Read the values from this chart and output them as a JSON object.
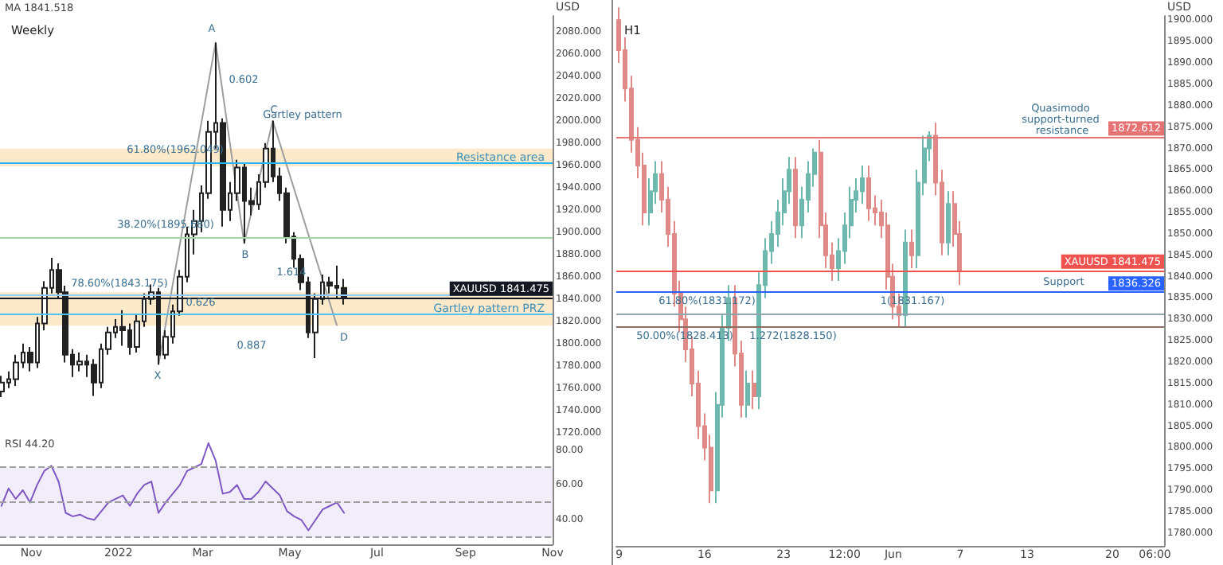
{
  "chart_data": [
    {
      "type": "candlestick",
      "title": "Weekly",
      "ylabel": "USD",
      "color": "#222222",
      "tick_labels": "y",
      "xlim": [
        "2021-10-10",
        "2022-11-01"
      ],
      "xticks": [
        {
          "value": "2021-11-01",
          "label": "Nov"
        },
        {
          "value": "2022-01-01",
          "label": "2022"
        },
        {
          "value": "2022-03-01",
          "label": "Mar"
        },
        {
          "value": "2022-05-01",
          "label": "May"
        },
        {
          "value": "2022-07-01",
          "label": "Jul"
        },
        {
          "value": "2022-09-01",
          "label": "Sep"
        },
        {
          "value": "2022-11-01",
          "label": "Nov"
        }
      ],
      "ylim": [
        1717,
        2094
      ],
      "yticks": [
        {
          "value": 1720,
          "label": "1720.000"
        },
        {
          "value": 1740,
          "label": "1740.000"
        },
        {
          "value": 1760,
          "label": "1760.000"
        },
        {
          "value": 1780,
          "label": "1780.000"
        },
        {
          "value": 1800,
          "label": "1800.000"
        },
        {
          "value": 1820,
          "label": "1820.000"
        },
        {
          "value": 1840,
          "label": "1840.000"
        },
        {
          "value": 1860,
          "label": "1860.000"
        },
        {
          "value": 1880,
          "label": "1880.000"
        },
        {
          "value": 1900,
          "label": "1900.000"
        },
        {
          "value": 1920,
          "label": "1920.000"
        },
        {
          "value": 1940,
          "label": "1940.000"
        },
        {
          "value": 1960,
          "label": "1960.000"
        },
        {
          "value": 1980,
          "label": "1980.000"
        },
        {
          "value": 2000,
          "label": "2000.000"
        },
        {
          "value": 2020,
          "label": "2020.000"
        },
        {
          "value": 2040,
          "label": "2040.000"
        },
        {
          "value": 2060,
          "label": "2060.000"
        },
        {
          "value": 2080,
          "label": "2080.000"
        }
      ],
      "x": [
        "2021-10-11",
        "2021-10-16",
        "2021-10-21",
        "2021-10-26",
        "2021-10-31",
        "2021-11-05",
        "2021-11-10",
        "2021-11-15",
        "2021-11-20",
        "2021-11-25",
        "2021-11-30",
        "2021-12-05",
        "2021-12-10",
        "2021-12-15",
        "2021-12-20",
        "2021-12-25",
        "2021-12-30",
        "2022-01-04",
        "2022-01-09",
        "2022-01-14",
        "2022-01-19",
        "2022-01-24",
        "2022-01-29",
        "2022-02-03",
        "2022-02-08",
        "2022-02-13",
        "2022-02-18",
        "2022-02-23",
        "2022-02-28",
        "2022-03-05",
        "2022-03-10",
        "2022-03-15",
        "2022-03-20",
        "2022-03-25",
        "2022-03-30",
        "2022-04-04",
        "2022-04-09",
        "2022-04-14",
        "2022-04-19",
        "2022-04-24",
        "2022-04-29",
        "2022-05-04",
        "2022-05-09",
        "2022-05-14",
        "2022-05-19",
        "2022-05-24",
        "2022-05-29",
        "2022-06-03",
        "2022-06-08"
      ],
      "ohlc": [
        [
          1757,
          1771,
          1752,
          1765
        ],
        [
          1765,
          1775,
          1760,
          1768
        ],
        [
          1768,
          1790,
          1762,
          1783
        ],
        [
          1783,
          1800,
          1778,
          1792
        ],
        [
          1792,
          1797,
          1775,
          1783
        ],
        [
          1783,
          1824,
          1778,
          1818
        ],
        [
          1818,
          1856,
          1812,
          1850
        ],
        [
          1850,
          1877,
          1845,
          1866
        ],
        [
          1866,
          1872,
          1840,
          1846
        ],
        [
          1846,
          1852,
          1783,
          1790
        ],
        [
          1790,
          1795,
          1770,
          1781
        ],
        [
          1781,
          1792,
          1775,
          1784
        ],
        [
          1784,
          1790,
          1770,
          1781
        ],
        [
          1781,
          1786,
          1753,
          1765
        ],
        [
          1765,
          1800,
          1760,
          1795
        ],
        [
          1795,
          1815,
          1790,
          1810
        ],
        [
          1810,
          1822,
          1805,
          1815
        ],
        [
          1815,
          1830,
          1798,
          1812
        ],
        [
          1812,
          1818,
          1790,
          1797
        ],
        [
          1797,
          1826,
          1792,
          1820
        ],
        [
          1820,
          1845,
          1815,
          1840
        ],
        [
          1840,
          1853,
          1835,
          1846
        ],
        [
          1846,
          1850,
          1781,
          1790
        ],
        [
          1790,
          1812,
          1786,
          1806
        ],
        [
          1806,
          1835,
          1800,
          1829
        ],
        [
          1829,
          1866,
          1825,
          1860
        ],
        [
          1860,
          1905,
          1855,
          1898
        ],
        [
          1898,
          1920,
          1880,
          1910
        ],
        [
          1910,
          1942,
          1900,
          1935
        ],
        [
          1935,
          2000,
          1930,
          1990
        ],
        [
          1990,
          2070,
          1975,
          1998
        ],
        [
          1998,
          2002,
          1905,
          1920
        ],
        [
          1920,
          1945,
          1910,
          1935
        ],
        [
          1935,
          1965,
          1928,
          1958
        ],
        [
          1958,
          1962,
          1890,
          1928
        ],
        [
          1928,
          1940,
          1915,
          1925
        ],
        [
          1925,
          1952,
          1920,
          1945
        ],
        [
          1945,
          1980,
          1940,
          1975
        ],
        [
          1975,
          2000,
          1945,
          1950
        ],
        [
          1950,
          1958,
          1928,
          1935
        ],
        [
          1935,
          1940,
          1890,
          1896
        ],
        [
          1896,
          1900,
          1868,
          1876
        ],
        [
          1876,
          1880,
          1848,
          1855
        ],
        [
          1855,
          1860,
          1805,
          1810
        ],
        [
          1810,
          1845,
          1787,
          1840
        ],
        [
          1840,
          1862,
          1835,
          1855
        ],
        [
          1855,
          1860,
          1845,
          1852
        ],
        [
          1852,
          1870,
          1840,
          1850
        ],
        [
          1850,
          1858,
          1835,
          1841.475
        ]
      ],
      "series": [
        {
          "type": "line",
          "color": "#9e9e9e",
          "x": [
            "2022-01-29",
            "2022-03-10",
            "2022-03-30",
            "2022-04-19",
            "2022-06-03"
          ],
          "values": [
            1781,
            2070,
            1890,
            2000,
            1816
          ]
        }
      ],
      "ref_lines": [
        {
          "axis": "y",
          "value": 1962.049,
          "color": "#29b6f6"
        },
        {
          "axis": "y",
          "value": 1895.68,
          "color": "#a5d6a7"
        },
        {
          "axis": "y",
          "value": 1843.175,
          "color": "#90caf9"
        },
        {
          "axis": "y",
          "value": 1827,
          "color": "#4fc3f7"
        },
        {
          "axis": "y",
          "value": 1841.475,
          "color": "#131722",
          "label": "XAUUSD 1841.475"
        }
      ],
      "bands": [
        {
          "axis": "y",
          "from": 1959,
          "to": 1975,
          "color": "#fbe3bd",
          "label": "Resistance area"
        },
        {
          "axis": "y",
          "from": 1816,
          "to": 1846,
          "color": "#fbe3bd",
          "label": "Gartley pattern PRZ"
        }
      ],
      "annotations": [
        "MA 1841.518",
        "X",
        "A",
        "B",
        "C",
        "D",
        "0.602",
        "0.626",
        "0.887",
        "1.614",
        "Gartley pattern",
        "61.80%(1962.049)",
        "38.20%(1895.680)",
        "78.60%(1843.175)"
      ]
    },
    {
      "type": "line",
      "color": "#7e57c2",
      "xlim": [
        "2021-10-10",
        "2022-11-01"
      ],
      "xticks": [
        {
          "value": "2021-11-01",
          "label": "Nov"
        },
        {
          "value": "2022-01-01",
          "label": "2022"
        },
        {
          "value": "2022-03-01",
          "label": "Mar"
        },
        {
          "value": "2022-05-01",
          "label": "May"
        },
        {
          "value": "2022-07-01",
          "label": "Jul"
        },
        {
          "value": "2022-09-01",
          "label": "Sep"
        },
        {
          "value": "2022-11-01",
          "label": "Nov"
        }
      ],
      "ylim": [
        26,
        88
      ],
      "yticks": [
        {
          "value": 40,
          "label": "40.00"
        },
        {
          "value": 60,
          "label": "60.00"
        },
        {
          "value": 80,
          "label": "80.00"
        }
      ],
      "x": [
        "2021-10-11",
        "2021-10-16",
        "2021-10-21",
        "2021-10-26",
        "2021-10-31",
        "2021-11-05",
        "2021-11-10",
        "2021-11-15",
        "2021-11-20",
        "2021-11-25",
        "2021-11-30",
        "2021-12-05",
        "2021-12-10",
        "2021-12-15",
        "2021-12-20",
        "2021-12-25",
        "2021-12-30",
        "2022-01-04",
        "2022-01-09",
        "2022-01-14",
        "2022-01-19",
        "2022-01-24",
        "2022-01-29",
        "2022-02-03",
        "2022-02-08",
        "2022-02-13",
        "2022-02-18",
        "2022-02-23",
        "2022-02-28",
        "2022-03-05",
        "2022-03-10",
        "2022-03-15",
        "2022-03-20",
        "2022-03-25",
        "2022-03-30",
        "2022-04-04",
        "2022-04-09",
        "2022-04-14",
        "2022-04-19",
        "2022-04-24",
        "2022-04-29",
        "2022-05-04",
        "2022-05-09",
        "2022-05-14",
        "2022-05-19",
        "2022-05-24",
        "2022-05-29",
        "2022-06-03",
        "2022-06-08"
      ],
      "values": [
        48,
        58,
        52,
        57,
        50,
        60,
        68,
        71,
        62,
        44,
        42,
        43,
        41,
        40,
        45,
        50,
        52,
        54,
        48,
        55,
        60,
        62,
        44,
        50,
        55,
        60,
        68,
        70,
        72,
        84,
        74,
        55,
        56,
        60,
        52,
        52,
        56,
        62,
        58,
        54,
        45,
        42,
        40,
        34,
        40,
        46,
        48,
        50,
        44
      ],
      "ref_lines": [
        {
          "axis": "y",
          "value": 70,
          "color": "#9e9e9e",
          "line_style": "dashed"
        },
        {
          "axis": "y",
          "value": 50,
          "color": "#9e9e9e",
          "line_style": "dashed"
        },
        {
          "axis": "y",
          "value": 30,
          "color": "#9e9e9e",
          "line_style": "dashed"
        }
      ],
      "bands": [
        {
          "axis": "y",
          "from": 30,
          "to": 70,
          "color": "#efeaf8"
        }
      ],
      "annotations": [
        "RSI 44.20"
      ]
    },
    {
      "type": "candlestick",
      "title": "H1",
      "ylabel": "USD",
      "colors": [
        "#e08a87",
        "#e08a87",
        "#e08a87",
        "#e08a87",
        "#e08a87",
        "#6fb8ae",
        "#6fb8ae",
        "#e08a87",
        "#e08a87",
        "#e08a87",
        "#e08a87",
        "#e08a87",
        "#e08a87",
        "#e08a87",
        "#e08a87",
        "#e08a87",
        "#6fb8ae",
        "#6fb8ae",
        "#6fb8ae",
        "#e08a87",
        "#e08a87",
        "#6fb8ae",
        "#e08a87",
        "#6fb8ae",
        "#6fb8ae",
        "#6fb8ae",
        "#6fb8ae",
        "#6fb8ae",
        "#6fb8ae",
        "#e08a87",
        "#6fb8ae",
        "#6fb8ae",
        "#6fb8ae",
        "#e08a87",
        "#e08a87",
        "#e08a87",
        "#6fb8ae",
        "#6fb8ae",
        "#6fb8ae",
        "#6fb8ae",
        "#6fb8ae",
        "#e08a87",
        "#e08a87",
        "#e08a87",
        "#e08a87",
        "#e08a87",
        "#e08a87",
        "#6fb8ae",
        "#e08a87",
        "#6fb8ae",
        "#6fb8ae",
        "#6fb8ae",
        "#e08a87",
        "#e08a87",
        "#6fb8ae",
        "#e08a87",
        "#e08a87",
        null,
        null,
        null,
        null,
        null,
        null,
        null,
        null,
        null,
        null,
        null,
        null,
        null,
        null,
        null,
        null,
        null,
        null,
        null,
        null,
        null,
        null,
        null,
        null,
        null,
        null,
        null,
        null,
        null,
        null,
        null,
        null,
        null
      ],
      "categories": [
        "9",
        null,
        null,
        null,
        null,
        null,
        null,
        null,
        null,
        null,
        null,
        null,
        null,
        null,
        "16",
        null,
        null,
        null,
        null,
        null,
        null,
        null,
        null,
        null,
        null,
        null,
        null,
        "23",
        null,
        null,
        null,
        null,
        null,
        null,
        null,
        null,
        null,
        "12:00",
        null,
        null,
        null,
        null,
        null,
        null,
        null,
        "Jun",
        null,
        null,
        null,
        null,
        null,
        null,
        null,
        null,
        null,
        null,
        "7",
        null,
        null,
        null,
        null,
        null,
        null,
        null,
        null,
        null,
        null,
        "13",
        null,
        null,
        null,
        null,
        null,
        null,
        null,
        null,
        null,
        null,
        null,
        null,
        null,
        "20",
        null,
        null,
        null,
        null,
        null,
        null,
        "06:00",
        null
      ],
      "ylim": [
        1777,
        1901
      ],
      "yticks": [
        {
          "value": 1780,
          "label": "1780.000"
        },
        {
          "value": 1785,
          "label": "1785.000"
        },
        {
          "value": 1790,
          "label": "1790.000"
        },
        {
          "value": 1795,
          "label": "1795.000"
        },
        {
          "value": 1800,
          "label": "1800.000"
        },
        {
          "value": 1805,
          "label": "1805.000"
        },
        {
          "value": 1810,
          "label": "1810.000"
        },
        {
          "value": 1815,
          "label": "1815.000"
        },
        {
          "value": 1820,
          "label": "1820.000"
        },
        {
          "value": 1825,
          "label": "1825.000"
        },
        {
          "value": 1830,
          "label": "1830.000"
        },
        {
          "value": 1835,
          "label": "1835.000"
        },
        {
          "value": 1840,
          "label": "1840.000"
        },
        {
          "value": 1845,
          "label": "1845.000"
        },
        {
          "value": 1850,
          "label": "1850.000"
        },
        {
          "value": 1855,
          "label": "1855.000"
        },
        {
          "value": 1860,
          "label": "1860.000"
        },
        {
          "value": 1865,
          "label": "1865.000"
        },
        {
          "value": 1870,
          "label": "1870.000"
        },
        {
          "value": 1875,
          "label": "1875.000"
        },
        {
          "value": 1880,
          "label": "1880.000"
        },
        {
          "value": 1885,
          "label": "1885.000"
        },
        {
          "value": 1890,
          "label": "1890.000"
        },
        {
          "value": 1895,
          "label": "1895.000"
        },
        {
          "value": 1900,
          "label": "1900.000"
        }
      ],
      "ohlc": [
        [
          1900,
          1903,
          1890,
          1893
        ],
        [
          1893,
          1896,
          1881,
          1884
        ],
        [
          1884,
          1887,
          1869,
          1872
        ],
        [
          1872,
          1875,
          1863,
          1866
        ],
        [
          1866,
          1869,
          1852,
          1855
        ],
        [
          1855,
          1863,
          1852,
          1860
        ],
        [
          1860,
          1867,
          1857,
          1864
        ],
        [
          1864,
          1867,
          1855,
          1858
        ],
        [
          1858,
          1861,
          1847,
          1850
        ],
        [
          1850,
          1853,
          1833,
          1836
        ],
        [
          1836,
          1839,
          1827,
          1830
        ],
        [
          1830,
          1833,
          1820,
          1823
        ],
        [
          1823,
          1826,
          1812,
          1815
        ],
        [
          1815,
          1818,
          1802,
          1805
        ],
        [
          1805,
          1808,
          1797,
          1800
        ],
        [
          1800,
          1803,
          1787,
          1790
        ],
        [
          1790,
          1813,
          1787,
          1810
        ],
        [
          1810,
          1831,
          1807,
          1828
        ],
        [
          1828,
          1838,
          1825,
          1835
        ],
        [
          1835,
          1838,
          1819,
          1822
        ],
        [
          1822,
          1825,
          1807,
          1810
        ],
        [
          1810,
          1818,
          1807,
          1815
        ],
        [
          1815,
          1818,
          1809,
          1812
        ],
        [
          1812,
          1841,
          1809,
          1838
        ],
        [
          1838,
          1849,
          1835,
          1846
        ],
        [
          1846,
          1853,
          1843,
          1850
        ],
        [
          1850,
          1858,
          1847,
          1855
        ],
        [
          1855,
          1863,
          1852,
          1860
        ],
        [
          1860,
          1868,
          1857,
          1865
        ],
        [
          1865,
          1868,
          1849,
          1852
        ],
        [
          1852,
          1861,
          1849,
          1858
        ],
        [
          1858,
          1867,
          1855,
          1864
        ],
        [
          1864,
          1870,
          1861,
          1869
        ],
        [
          1869,
          1872,
          1849,
          1852
        ],
        [
          1852,
          1855,
          1842,
          1845
        ],
        [
          1845,
          1848,
          1839,
          1842
        ],
        [
          1842,
          1849,
          1839,
          1846
        ],
        [
          1846,
          1855,
          1843,
          1852
        ],
        [
          1852,
          1861,
          1849,
          1858
        ],
        [
          1858,
          1863,
          1855,
          1860
        ],
        [
          1860,
          1866,
          1857,
          1863
        ],
        [
          1863,
          1866,
          1853,
          1856
        ],
        [
          1856,
          1859,
          1852,
          1855
        ],
        [
          1855,
          1858,
          1849,
          1852
        ],
        [
          1852,
          1855,
          1837,
          1840
        ],
        [
          1840,
          1843,
          1830,
          1833
        ],
        [
          1833,
          1836,
          1828,
          1831
        ],
        [
          1831,
          1851,
          1828,
          1848
        ],
        [
          1848,
          1851,
          1842,
          1845
        ],
        [
          1845,
          1865,
          1842,
          1862
        ],
        [
          1862,
          1873,
          1859,
          1870
        ],
        [
          1870,
          1874,
          1867,
          1873
        ],
        [
          1873,
          1876,
          1859,
          1862
        ],
        [
          1862,
          1865,
          1845,
          1848
        ],
        [
          1848,
          1860,
          1845,
          1857
        ],
        [
          1857,
          1860,
          1847,
          1850
        ],
        [
          1850,
          1853,
          1838,
          1841.475
        ],
        null,
        null,
        null,
        null,
        null,
        null,
        null,
        null,
        null,
        null,
        null,
        null,
        null,
        null,
        null,
        null,
        null,
        null,
        null,
        null,
        null,
        null,
        null,
        null,
        null,
        null,
        null,
        null,
        null,
        null,
        null,
        null,
        null
      ],
      "ref_lines": [
        {
          "axis": "y",
          "value": 1872.612,
          "color": "#e57373",
          "label": "1872.612"
        },
        {
          "axis": "y",
          "value": 1841.475,
          "color": "#ef5350",
          "label": "XAUUSD 1841.475"
        },
        {
          "axis": "y",
          "value": 1836.326,
          "color": "#2962ff",
          "label": "1836.326"
        },
        {
          "axis": "y",
          "value": 1831.17,
          "color": "#90a4ae"
        },
        {
          "axis": "y",
          "value": 1828.15,
          "color": "#8d6e63"
        }
      ],
      "annotations": [
        "Quasimodo support-turned resistance",
        "Support",
        "61.80%(1831.172)",
        "50.00%(1828.413)",
        "1.272(1828.150)",
        "1(1831.167)"
      ]
    }
  ]
}
